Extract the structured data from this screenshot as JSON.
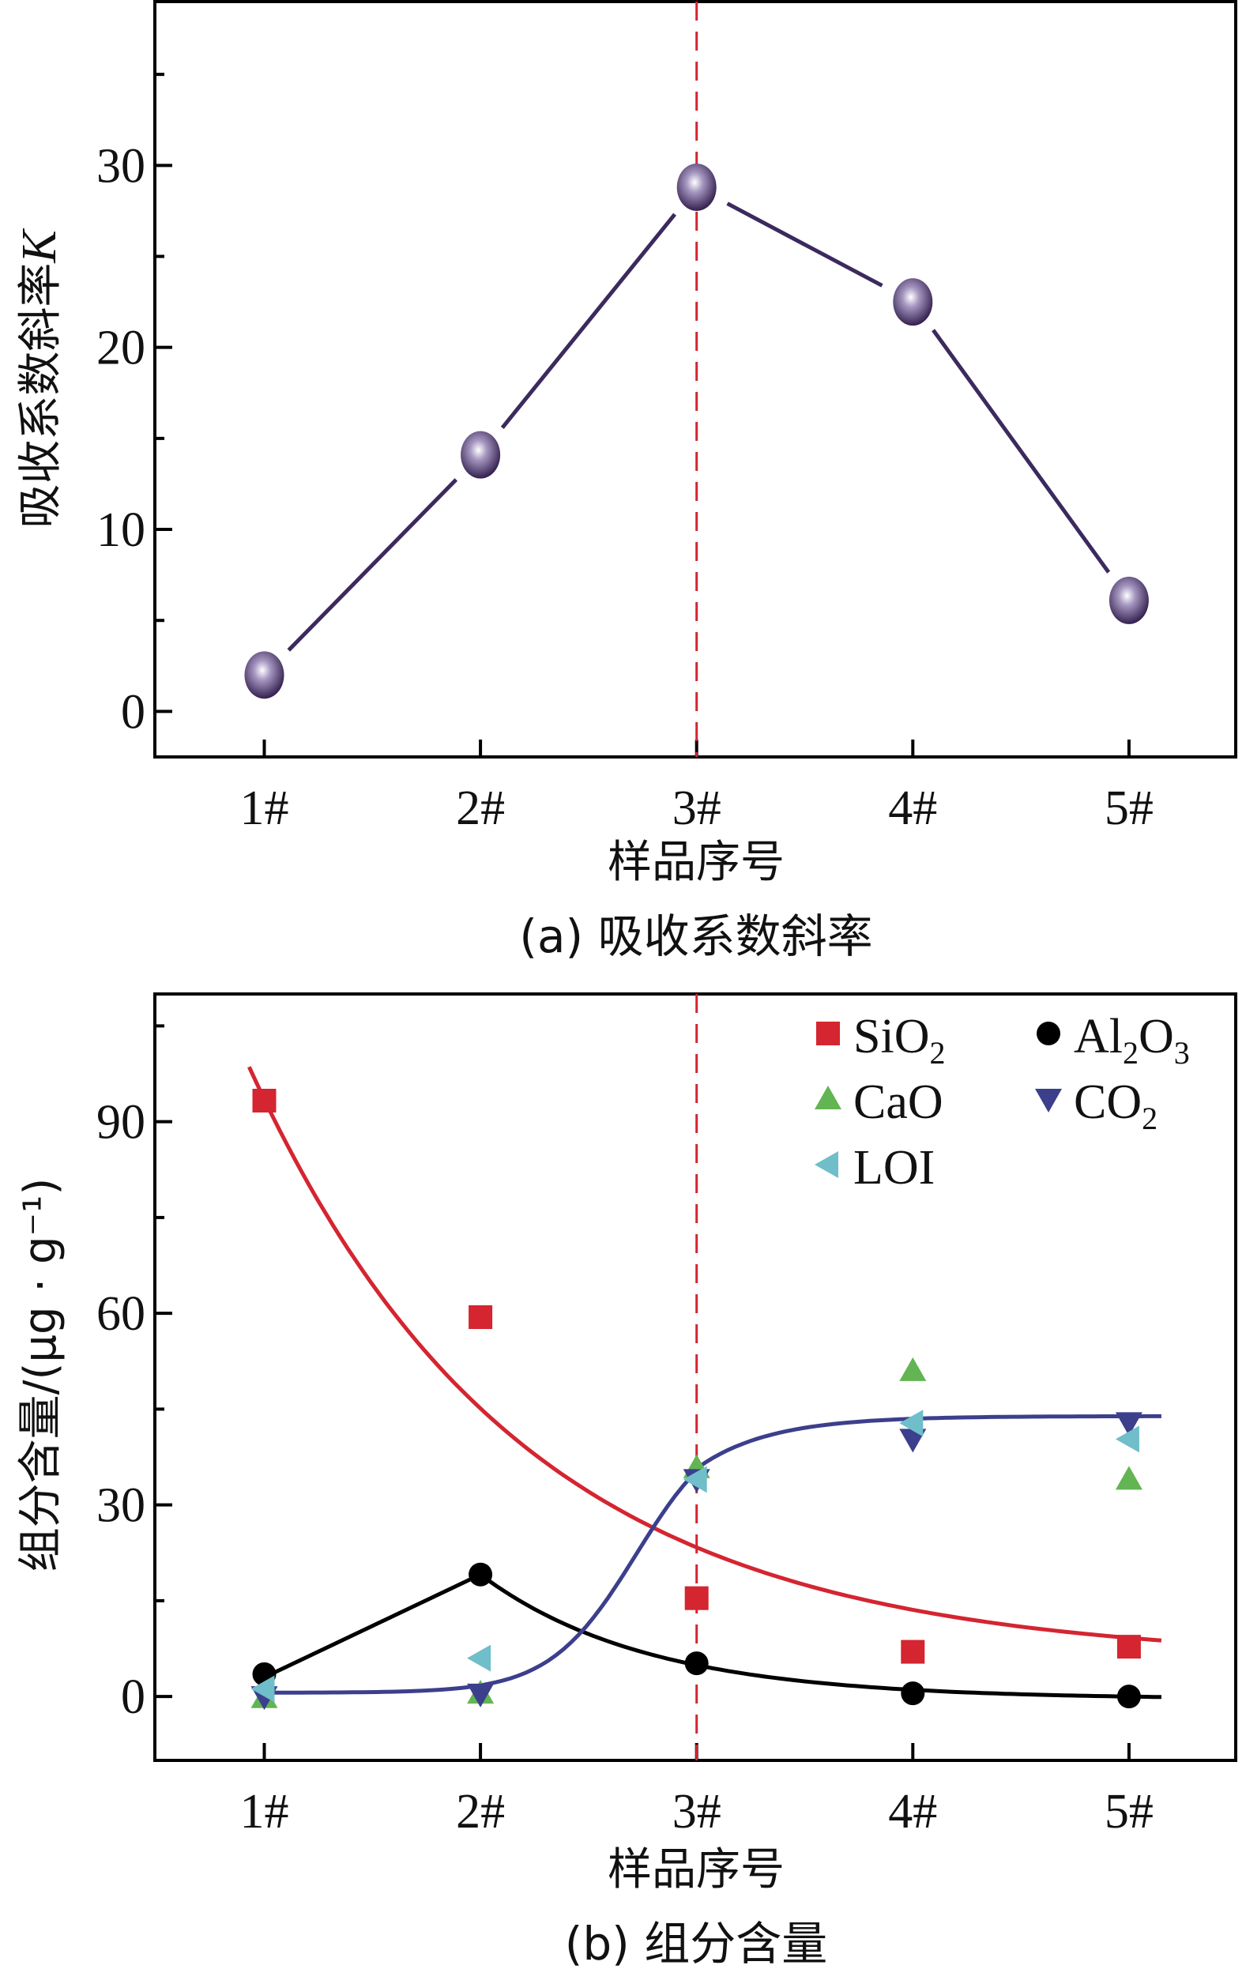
{
  "chart_data": [
    {
      "type": "line",
      "panel": "a",
      "caption": "(a) 吸收系数斜率",
      "title": "",
      "xlabel": "样品序号",
      "ylabel": "吸收系数斜率",
      "ylabel_italic_suffix": "K",
      "categories": [
        "1#",
        "2#",
        "3#",
        "4#",
        "5#"
      ],
      "series": [
        {
          "name": "吸收系数斜率K",
          "color": "#3b2a5e",
          "values": [
            2.0,
            14.1,
            28.8,
            22.5,
            6.1
          ]
        }
      ],
      "ylim": [
        -2.5,
        39
      ],
      "yticks": [
        0,
        10,
        20,
        30
      ],
      "yticks_minor": [
        5,
        15,
        25,
        35
      ],
      "reference_line": {
        "category": "3#",
        "style": "dashed",
        "color": "#d42530"
      },
      "grid": false,
      "legend": "none"
    },
    {
      "type": "scatter",
      "panel": "b",
      "caption": "(b) 组分含量",
      "title": "",
      "xlabel": "样品序号",
      "ylabel": "组分含量/(μg · g⁻¹)",
      "categories": [
        "1#",
        "2#",
        "3#",
        "4#",
        "5#"
      ],
      "series": [
        {
          "name": "SiO2",
          "label_main": "SiO",
          "label_sub": "2",
          "marker": "square",
          "color": "#d42530",
          "values": [
            93.3,
            59.4,
            15.4,
            7.0,
            7.8
          ],
          "fit": "exponential-decay"
        },
        {
          "name": "Al2O3",
          "label_main": "Al",
          "label_sub": "2",
          "label_main2": "O",
          "label_sub2": "3",
          "marker": "circle",
          "color": "#000000",
          "values": [
            3.5,
            19.1,
            5.2,
            0.5,
            0.0
          ],
          "fit": "peak-decay"
        },
        {
          "name": "CaO",
          "label_main": "CaO",
          "marker": "triangle-up",
          "color": "#62b552",
          "values": [
            -0.2,
            0.5,
            35.8,
            51.0,
            34.0
          ]
        },
        {
          "name": "CO2",
          "label_main": "CO",
          "label_sub": "2",
          "marker": "triangle-down",
          "color": "#3b3f8c",
          "values": [
            0.0,
            0.4,
            34.0,
            40.3,
            42.9
          ],
          "fit": "sigmoid"
        },
        {
          "name": "LOI",
          "label_main": "LOI",
          "marker": "triangle-left",
          "color": "#6fbec9",
          "values": [
            1.2,
            6.0,
            34.0,
            42.8,
            40.3
          ]
        }
      ],
      "ylim": [
        -10,
        110
      ],
      "yticks": [
        0,
        30,
        60,
        90
      ],
      "yticks_minor": [
        15,
        45,
        75,
        105
      ],
      "reference_line": {
        "category": "3#",
        "style": "dashed",
        "color": "#d42530"
      },
      "grid": false,
      "legend": "top-right"
    }
  ]
}
